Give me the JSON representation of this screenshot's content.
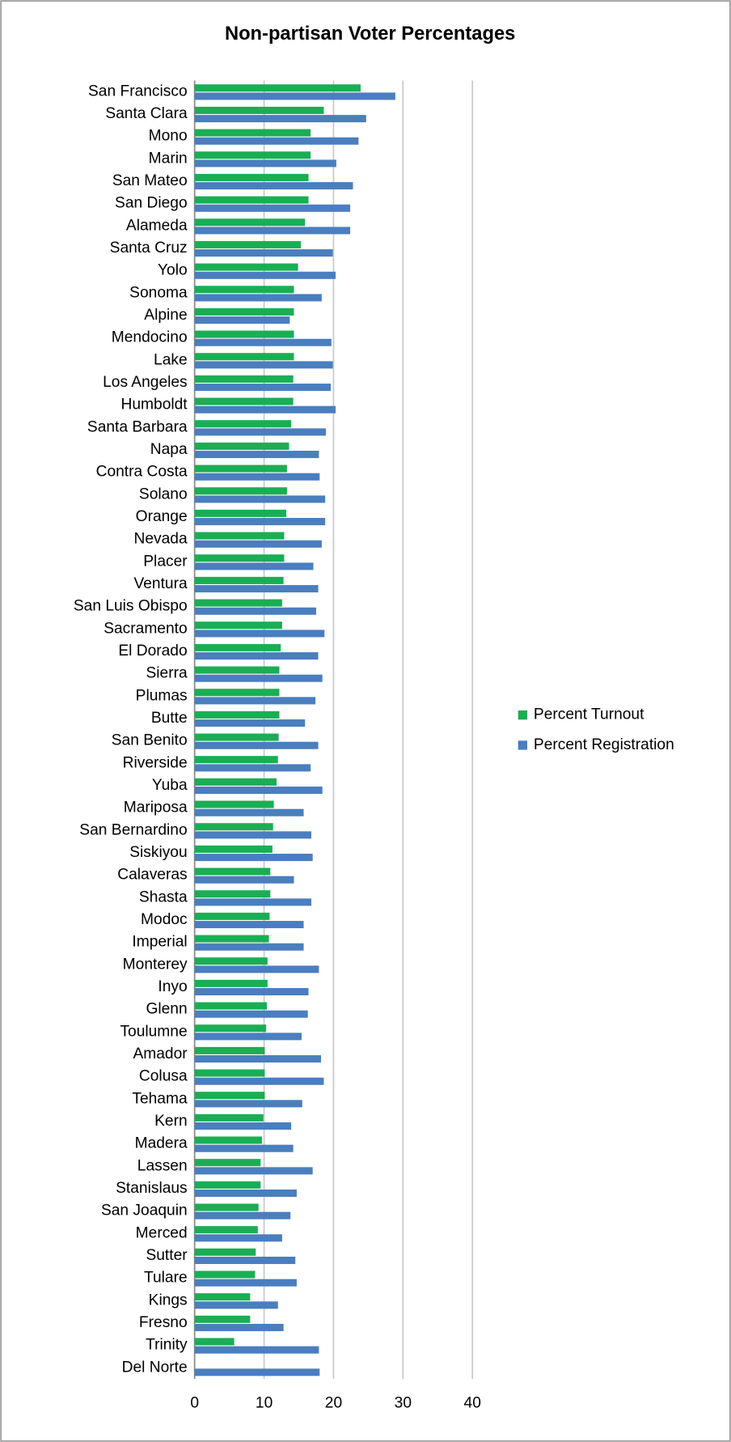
{
  "chart_data": {
    "type": "hbar",
    "title": "Non-partisan Voter Percentages",
    "categories": [
      "San Francisco",
      "Santa Clara",
      "Mono",
      "Marin",
      "San Mateo",
      "San Diego",
      "Alameda",
      "Santa Cruz",
      "Yolo",
      "Sonoma",
      "Alpine",
      "Mendocino",
      "Lake",
      "Los Angeles",
      "Humboldt",
      "Santa Barbara",
      "Napa",
      "Contra Costa",
      "Solano",
      "Orange",
      "Nevada",
      "Placer",
      "Ventura",
      "San Luis Obispo",
      "Sacramento",
      "El Dorado",
      "Sierra",
      "Plumas",
      "Butte",
      "San Benito",
      "Riverside",
      "Yuba",
      "Mariposa",
      "San Bernardino",
      "Siskiyou",
      "Calaveras",
      "Shasta",
      "Modoc",
      "Imperial",
      "Monterey",
      "Inyo",
      "Glenn",
      "Toulumne",
      "Amador",
      "Colusa",
      "Tehama",
      "Kern",
      "Madera",
      "Lassen",
      "Stanislaus",
      "San Joaquin",
      "Merced",
      "Sutter",
      "Tulare",
      "Kings",
      "Fresno",
      "Trinity",
      "Del Norte"
    ],
    "series": [
      {
        "name": "Percent Turnout",
        "color": "#1aae54",
        "values": [
          23.9,
          18.6,
          16.7,
          16.7,
          16.4,
          16.4,
          15.9,
          15.3,
          14.9,
          14.3,
          14.3,
          14.3,
          14.3,
          14.2,
          14.2,
          13.9,
          13.6,
          13.3,
          13.3,
          13.2,
          12.9,
          12.9,
          12.8,
          12.6,
          12.6,
          12.4,
          12.2,
          12.2,
          12.2,
          12.1,
          12.0,
          11.8,
          11.4,
          11.3,
          11.2,
          10.9,
          10.9,
          10.8,
          10.7,
          10.5,
          10.5,
          10.4,
          10.3,
          10.1,
          10.1,
          10.1,
          9.9,
          9.7,
          9.5,
          9.5,
          9.2,
          9.1,
          8.8,
          8.7,
          8.0,
          8.0,
          5.7,
          0
        ]
      },
      {
        "name": "Percent Registration",
        "color": "#4a7ebf",
        "values": [
          28.9,
          24.7,
          23.6,
          20.4,
          22.8,
          22.4,
          22.4,
          19.9,
          20.3,
          18.3,
          13.7,
          19.7,
          19.9,
          19.6,
          20.3,
          18.9,
          17.9,
          18.0,
          18.8,
          18.8,
          18.3,
          17.1,
          17.8,
          17.5,
          18.7,
          17.8,
          18.4,
          17.4,
          15.9,
          17.8,
          16.7,
          18.4,
          15.7,
          16.8,
          17.0,
          14.3,
          16.8,
          15.7,
          15.7,
          17.9,
          16.4,
          16.3,
          15.4,
          18.2,
          18.6,
          15.5,
          13.9,
          14.2,
          17.0,
          14.7,
          13.8,
          12.6,
          14.5,
          14.7,
          12.0,
          12.8,
          17.9,
          18.0
        ]
      }
    ],
    "xlim": [
      0,
      40
    ],
    "xticks": [
      0,
      10,
      20,
      30,
      40
    ],
    "grid": true,
    "legend": "right"
  }
}
